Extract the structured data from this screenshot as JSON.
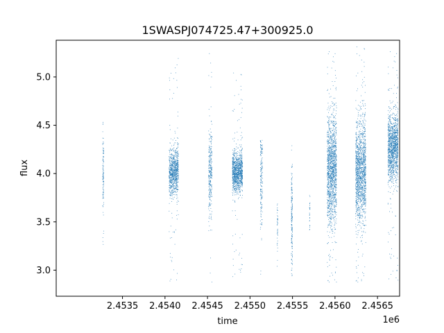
{
  "chart_data": {
    "type": "scatter",
    "title": "1SWASPJ074725.47+300925.0",
    "xlabel": "time",
    "ylabel": "flux",
    "x_offset_label": "1e6",
    "x_tick_labels": [
      "2.4535",
      "2.4540",
      "2.4545",
      "2.4550",
      "2.4555",
      "2.4560",
      "2.4565"
    ],
    "x_ticks": [
      2453500,
      2454000,
      2454500,
      2455000,
      2455500,
      2456000,
      2456500
    ],
    "y_tick_labels": [
      "3.0",
      "3.5",
      "4.0",
      "4.5",
      "5.0"
    ],
    "y_ticks": [
      3.0,
      3.5,
      4.0,
      4.5,
      5.0
    ],
    "xlim": [
      2452720,
      2456760
    ],
    "ylim": [
      2.73,
      5.38
    ],
    "grid": false,
    "marker_color": "#1f77b4",
    "clusters": [
      {
        "x_center": 2453270,
        "x_width": 12,
        "y_center": 4.03,
        "y_spread": 0.2,
        "y_min": 3.1,
        "y_max": 4.7,
        "n_points": 120
      },
      {
        "x_center": 2454100,
        "x_width": 110,
        "y_center": 4.02,
        "y_spread": 0.12,
        "y_min": 2.85,
        "y_max": 5.2,
        "n_points": 900
      },
      {
        "x_center": 2454530,
        "x_width": 40,
        "y_center": 4.0,
        "y_spread": 0.22,
        "y_min": 2.85,
        "y_max": 5.3,
        "n_points": 300
      },
      {
        "x_center": 2454850,
        "x_width": 120,
        "y_center": 4.02,
        "y_spread": 0.1,
        "y_min": 2.9,
        "y_max": 5.05,
        "n_points": 1100
      },
      {
        "x_center": 2455130,
        "x_width": 25,
        "y_center": 3.95,
        "y_spread": 0.25,
        "y_min": 2.95,
        "y_max": 4.35,
        "n_points": 180
      },
      {
        "x_center": 2455320,
        "x_width": 10,
        "y_center": 3.45,
        "y_spread": 0.18,
        "y_min": 3.0,
        "y_max": 3.7,
        "n_points": 40
      },
      {
        "x_center": 2455490,
        "x_width": 14,
        "y_center": 3.55,
        "y_spread": 0.3,
        "y_min": 2.92,
        "y_max": 4.3,
        "n_points": 180
      },
      {
        "x_center": 2455700,
        "x_width": 8,
        "y_center": 3.6,
        "y_spread": 0.12,
        "y_min": 3.4,
        "y_max": 3.8,
        "n_points": 25
      },
      {
        "x_center": 2455960,
        "x_width": 110,
        "y_center": 4.03,
        "y_spread": 0.28,
        "y_min": 2.85,
        "y_max": 5.32,
        "n_points": 1500
      },
      {
        "x_center": 2456300,
        "x_width": 120,
        "y_center": 4.03,
        "y_spread": 0.26,
        "y_min": 2.85,
        "y_max": 5.32,
        "n_points": 1500
      },
      {
        "x_center": 2456680,
        "x_width": 120,
        "y_center": 4.27,
        "y_spread": 0.17,
        "y_min": 2.87,
        "y_max": 5.32,
        "n_points": 1300
      }
    ]
  }
}
